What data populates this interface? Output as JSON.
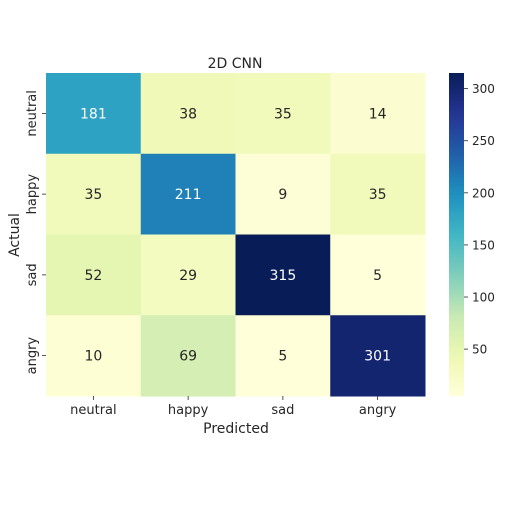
{
  "chart_data": {
    "type": "heatmap",
    "title": "2D CNN",
    "xlabel": "Predicted",
    "ylabel": "Actual",
    "x_categories": [
      "neutral",
      "happy",
      "sad",
      "angry"
    ],
    "y_categories": [
      "neutral",
      "happy",
      "sad",
      "angry"
    ],
    "values": [
      [
        181,
        38,
        35,
        14
      ],
      [
        35,
        211,
        9,
        35
      ],
      [
        52,
        29,
        315,
        5
      ],
      [
        10,
        69,
        5,
        301
      ]
    ],
    "colormap": "YlGnBu",
    "color_range": [
      5,
      315
    ],
    "colorbar_ticks": [
      50,
      100,
      150,
      200,
      250,
      300
    ],
    "grid": false
  }
}
